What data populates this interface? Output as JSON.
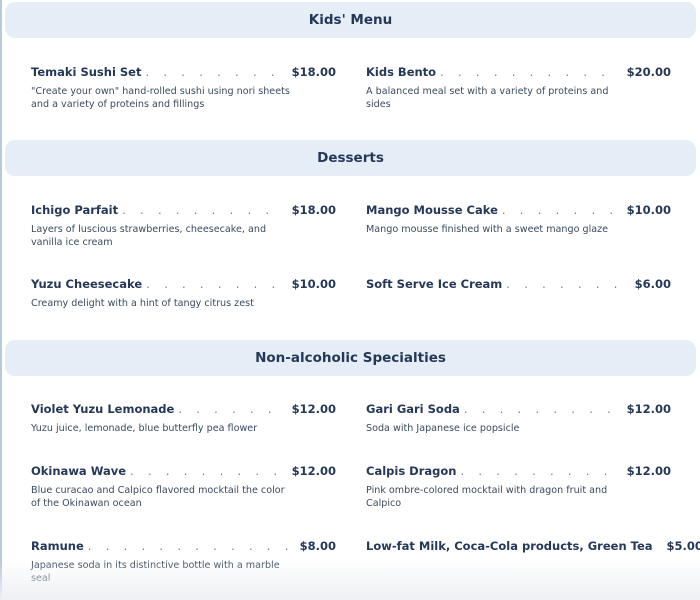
{
  "sections": [
    {
      "title": "Kids' Menu",
      "items": [
        {
          "name": "Temaki Sushi Set",
          "price": "$18.00",
          "desc": "\"Create your own\" hand-rolled sushi using nori sheets and a variety of proteins and fillings"
        },
        {
          "name": "Kids Bento",
          "price": "$20.00",
          "desc": "A balanced meal set with a variety of proteins and sides"
        }
      ]
    },
    {
      "title": "Desserts",
      "items": [
        {
          "name": "Ichigo Parfait",
          "price": "$18.00",
          "desc": "Layers of luscious strawberries, cheesecake, and vanilla ice cream"
        },
        {
          "name": "Mango Mousse Cake",
          "price": "$10.00",
          "desc": "Mango mousse finished with a sweet mango glaze"
        },
        {
          "name": "Yuzu Cheesecake",
          "price": "$10.00",
          "desc": "Creamy delight with a hint of tangy citrus zest"
        },
        {
          "name": "Soft Serve Ice Cream",
          "price": "$6.00",
          "desc": ""
        }
      ]
    },
    {
      "title": "Non-alcoholic Specialties",
      "items": [
        {
          "name": "Violet Yuzu Lemonade",
          "price": "$12.00",
          "desc": "Yuzu juice, lemonade, blue butterfly pea flower"
        },
        {
          "name": "Gari Gari Soda",
          "price": "$12.00",
          "desc": "Soda with Japanese ice popsicle"
        },
        {
          "name": "Okinawa Wave",
          "price": "$12.00",
          "desc": "Blue curacao and Calpico flavored mocktail the color of the Okinawan ocean"
        },
        {
          "name": "Calpis Dragon",
          "price": "$12.00",
          "desc": "Pink ombre-colored mocktail with dragon fruit and Calpico"
        },
        {
          "name": "Ramune",
          "price": "$8.00",
          "desc": "Japanese soda in its distinctive bottle with a marble seal"
        },
        {
          "name": "Low-fat Milk, Coca-Cola products, Green Tea",
          "price": "$5.00",
          "desc": ""
        }
      ]
    }
  ]
}
